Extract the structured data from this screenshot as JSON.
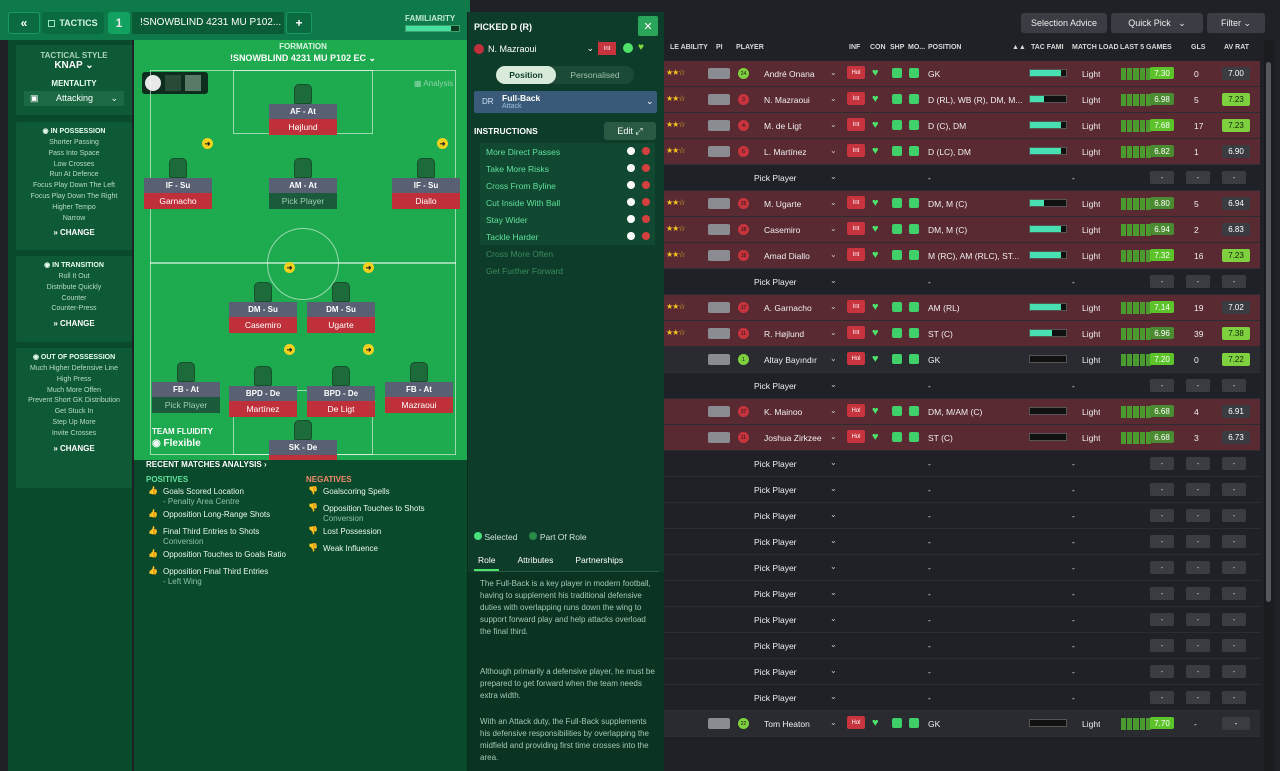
{
  "topbar": {
    "back_icon": "«",
    "tactics_label": "TACTICS",
    "slot": "1",
    "tactic_name": "!SNOWBLIND 4231 MU P102...",
    "add_label": "+",
    "familiarity_label": "FAMILIARITY"
  },
  "left": {
    "style_label": "TACTICAL STYLE",
    "style_value": "KNAP",
    "mentality_label": "MENTALITY",
    "mentality_value": "Attacking",
    "in_possession": {
      "title": "IN POSSESSION",
      "items": [
        "Shorter Passing",
        "Pass Into Space",
        "Low Crosses",
        "Run At Defence",
        "Focus Play Down The Left",
        "Focus Play Down The Right",
        "Higher Tempo",
        "Narrow"
      ]
    },
    "in_transition": {
      "title": "IN TRANSITION",
      "items": [
        "Roll It Out",
        "Distribute Quickly",
        "Counter",
        "Counter-Press"
      ]
    },
    "out_possession": {
      "title": "OUT OF POSSESSION",
      "items": [
        "Much Higher Defensive Line",
        "High Press",
        "Much More Offen",
        "Prevent Short GK Distribution",
        "Get Stuck In",
        "Step Up More",
        "Invite Crosses"
      ]
    },
    "change_label": "CHANGE"
  },
  "formation": {
    "label": "FORMATION",
    "name": "!SNOWBLIND 4231 MU P102 EC",
    "analysis_label": "Analysis",
    "fluidity_label": "TEAM FLUIDITY",
    "fluidity_value": "Flexible"
  },
  "positions": [
    {
      "role": "AF - At",
      "player": "Højlund"
    },
    {
      "role": "IF - Su",
      "player": "Garnacho"
    },
    {
      "role": "AM - At",
      "player": "Pick Player"
    },
    {
      "role": "IF - Su",
      "player": "Diallo"
    },
    {
      "role": "DM - Su",
      "player": "Casemiro"
    },
    {
      "role": "DM - Su",
      "player": "Ugarte"
    },
    {
      "role": "FB - At",
      "player": "Pick Player"
    },
    {
      "role": "BPD - De",
      "player": "Martínez"
    },
    {
      "role": "BPD - De",
      "player": "De Ligt"
    },
    {
      "role": "FB - At",
      "player": "Mazraoui"
    },
    {
      "role": "SK - De",
      "player": "Onana"
    }
  ],
  "analysis": {
    "title": "RECENT MATCHES ANALYSIS",
    "positives_label": "POSITIVES",
    "negatives_label": "NEGATIVES",
    "positives": [
      [
        "Goals Scored Location",
        "- Penalty Area Centre"
      ],
      [
        "Opposition Long-Range Shots",
        ""
      ],
      [
        "Final Third Entries to Shots",
        "Conversion"
      ],
      [
        "Opposition Touches to Goals Ratio",
        ""
      ],
      [
        "Opposition Final Third Entries",
        "- Left Wing"
      ]
    ],
    "negatives": [
      [
        "Goalscoring Spells",
        ""
      ],
      [
        "Opposition Touches to Shots",
        "Conversion"
      ],
      [
        "Lost Possession",
        ""
      ],
      [
        "Weak Influence",
        ""
      ]
    ]
  },
  "mid": {
    "title": "PICKED D (R)",
    "player": "N. Mazraoui",
    "inf": "Int",
    "position_tab": "Position",
    "personalised_tab": "Personalised",
    "role_code": "DR",
    "role_name": "Full-Back",
    "role_duty": "Attack",
    "instructions_label": "INSTRUCTIONS",
    "edit_label": "Edit",
    "instructions": [
      "More Direct Passes",
      "Take More Risks",
      "Cross From Byline",
      "Cut Inside With Ball",
      "Stay Wider",
      "Tackle Harder",
      "Cross More Often",
      "Get Further Forward"
    ],
    "legend_selected": "Selected",
    "legend_part": "Part Of Role",
    "tabs": [
      "Role",
      "Attributes",
      "Partnerships"
    ],
    "desc": [
      "The Full-Back is a key player in modern football, having to supplement his traditional defensive duties with overlapping runs down the wing to support forward play and help attacks overload the final third.",
      "Although primarily a defensive player, he must be prepared to get forward when the team needs extra width.",
      "With an Attack duty, the Full-Back supplements his defensive responsibilities by overlapping the midfield and providing first time crosses into the area."
    ]
  },
  "toolbar": {
    "selection_advice": "Selection Advice",
    "quick_pick": "Quick Pick",
    "filter": "Filter"
  },
  "table": {
    "headers": {
      "ability": "LE ABILITY",
      "pi": "PI",
      "player": "PLAYER",
      "inf": "INF",
      "con": "CON",
      "shp": "SHP",
      "mo": "MO...",
      "position": "POSITION",
      "tac": "TAC FAMI",
      "load": "MATCH LOAD",
      "last5": "LAST 5 GAMES",
      "gls": "GLS",
      "avrat": "AV RAT"
    },
    "rows": [
      {
        "num": "24",
        "name": "André Onana",
        "pos": "GK",
        "load": "Light",
        "l5": "7.30",
        "gls": "0",
        "av": "7.00",
        "red": true,
        "tac": 85,
        "inf": "Hol"
      },
      {
        "num": "3",
        "name": "N. Mazraoui",
        "pos": "D (RL), WB (R), DM, M...",
        "load": "Light",
        "l5": "6.98",
        "gls": "5",
        "av": "7.23",
        "red": true,
        "tac": 40,
        "inf": "Int"
      },
      {
        "num": "4",
        "name": "M. de Ligt",
        "pos": "D (C), DM",
        "load": "Light",
        "l5": "7.68",
        "gls": "17",
        "av": "7.23",
        "red": true,
        "tac": 85,
        "inf": "Int"
      },
      {
        "num": "6",
        "name": "L. Martínez",
        "pos": "D (LC), DM",
        "load": "Light",
        "l5": "6.82",
        "gls": "1",
        "av": "6.90",
        "red": true,
        "tac": 85,
        "inf": "Int"
      },
      {
        "name": "Pick Player",
        "pos": "-",
        "load": "-",
        "empty": true
      },
      {
        "num": "25",
        "name": "M. Ugarte",
        "pos": "DM, M (C)",
        "load": "Light",
        "l5": "6.80",
        "gls": "5",
        "av": "6.94",
        "red": true,
        "tac": 40,
        "inf": "Int"
      },
      {
        "num": "18",
        "name": "Casemiro",
        "pos": "DM, M (C)",
        "load": "Light",
        "l5": "6.94",
        "gls": "2",
        "av": "6.83",
        "red": true,
        "tac": 85,
        "inf": "Int"
      },
      {
        "num": "16",
        "name": "Amad Diallo",
        "pos": "M (RC), AM (RLC), ST...",
        "load": "Light",
        "l5": "7.32",
        "gls": "16",
        "av": "7.23",
        "red": true,
        "tac": 85,
        "inf": "Int"
      },
      {
        "name": "Pick Player",
        "pos": "-",
        "load": "-",
        "empty": true
      },
      {
        "num": "17",
        "name": "A. Garnacho",
        "pos": "AM (RL)",
        "load": "Light",
        "l5": "7.14",
        "gls": "19",
        "av": "7.02",
        "red": true,
        "tac": 85,
        "inf": "Int"
      },
      {
        "num": "11",
        "name": "R. Højlund",
        "pos": "ST (C)",
        "load": "Light",
        "l5": "6.96",
        "gls": "39",
        "av": "7.38",
        "red": true,
        "tac": 60,
        "inf": "Int"
      },
      {
        "num": "1",
        "name": "Altay Bayındır",
        "pos": "GK",
        "load": "Light",
        "l5": "7.20",
        "gls": "0",
        "av": "7.22",
        "red": false,
        "tac": 0,
        "inf": "Hol"
      },
      {
        "name": "Pick Player",
        "pos": "-",
        "load": "-",
        "empty": true
      },
      {
        "num": "37",
        "name": "K. Mainoo",
        "pos": "DM, M/AM (C)",
        "load": "Light",
        "l5": "6.68",
        "gls": "4",
        "av": "6.91",
        "red": true,
        "tac": 0,
        "inf": "Hol"
      },
      {
        "num": "11",
        "name": "Joshua Zirkzee",
        "pos": "ST (C)",
        "load": "Light",
        "l5": "6.68",
        "gls": "3",
        "av": "6.73",
        "red": true,
        "tac": 0,
        "inf": "Hol"
      },
      {
        "name": "Pick Player",
        "pos": "-",
        "load": "-",
        "empty": true
      },
      {
        "name": "Pick Player",
        "pos": "-",
        "load": "-",
        "empty": true
      },
      {
        "name": "Pick Player",
        "pos": "-",
        "load": "-",
        "empty": true
      },
      {
        "name": "Pick Player",
        "pos": "-",
        "load": "-",
        "empty": true
      },
      {
        "name": "Pick Player",
        "pos": "-",
        "load": "-",
        "empty": true
      },
      {
        "name": "Pick Player",
        "pos": "-",
        "load": "-",
        "empty": true
      },
      {
        "name": "Pick Player",
        "pos": "-",
        "load": "-",
        "empty": true
      },
      {
        "name": "Pick Player",
        "pos": "-",
        "load": "-",
        "empty": true
      },
      {
        "name": "Pick Player",
        "pos": "-",
        "load": "-",
        "empty": true
      },
      {
        "name": "Pick Player",
        "pos": "-",
        "load": "-",
        "empty": true
      },
      {
        "num": "22",
        "name": "Tom Heaton",
        "pos": "GK",
        "load": "Light",
        "l5": "7.70",
        "gls": "-",
        "av": "-",
        "red": false,
        "tac": 0,
        "inf": "Hol",
        "dark": true
      }
    ]
  }
}
